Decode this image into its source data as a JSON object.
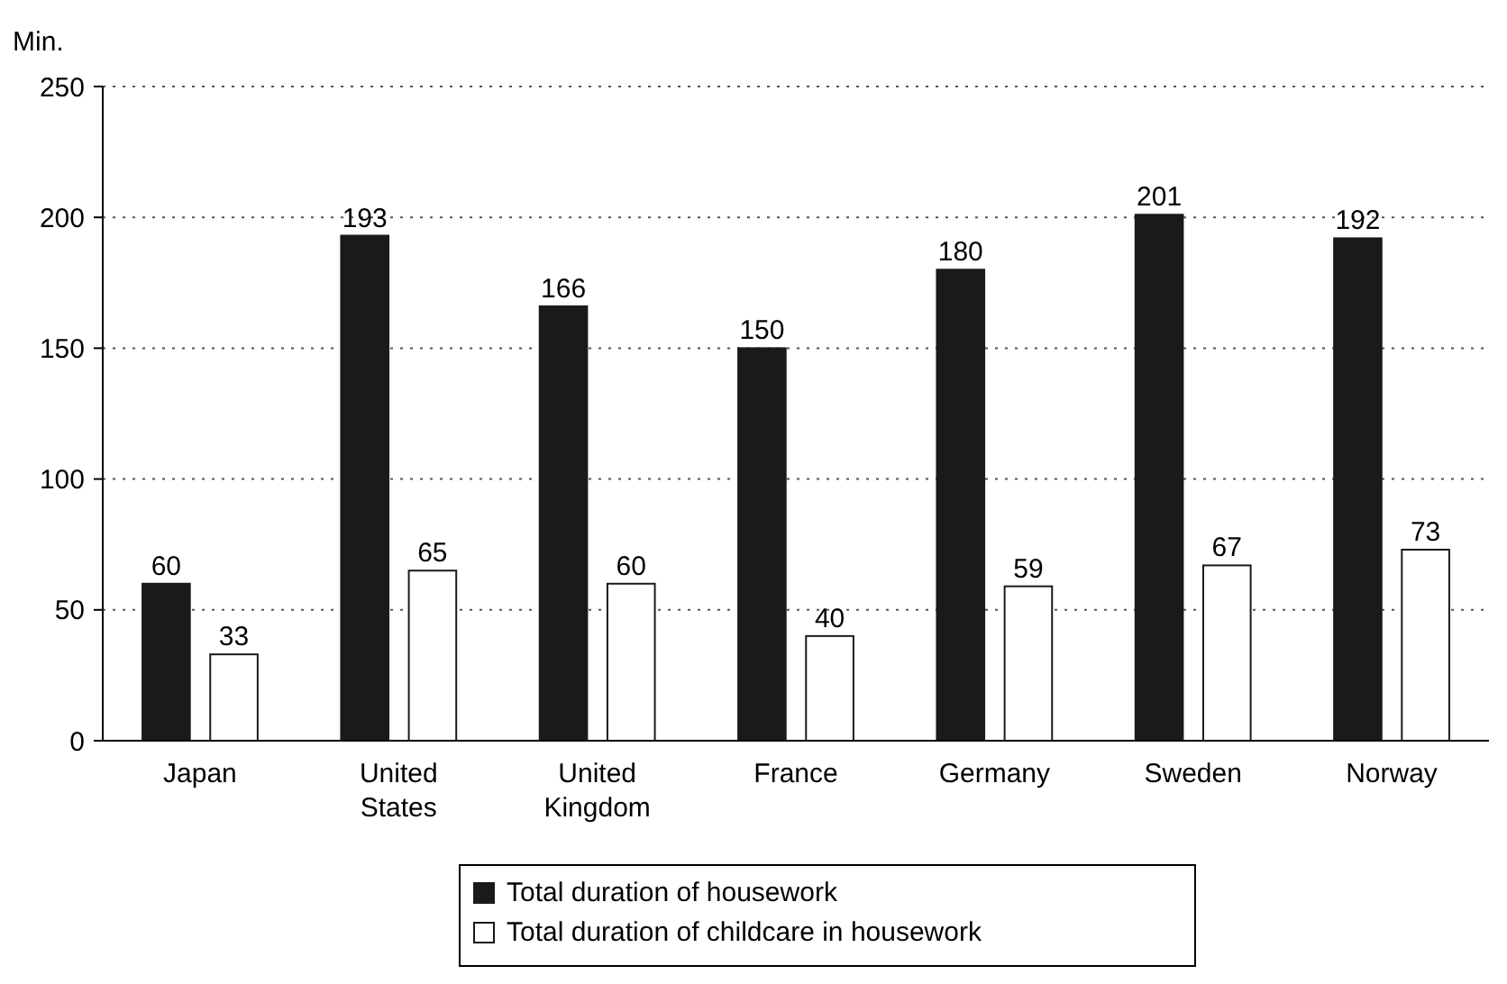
{
  "chart_data": {
    "type": "bar",
    "ylabel": "Min.",
    "categories": [
      "Japan",
      "United States",
      "United Kingdom",
      "France",
      "Germany",
      "Sweden",
      "Norway"
    ],
    "series": [
      {
        "name": "Total duration of housework",
        "color": "#1a1a1a",
        "values": [
          60,
          193,
          166,
          150,
          180,
          201,
          192
        ]
      },
      {
        "name": "Total duration of childcare in housework",
        "color": "#ffffff",
        "values": [
          33,
          65,
          60,
          40,
          59,
          67,
          73
        ]
      }
    ],
    "ylim": [
      0,
      250
    ],
    "yticks": [
      0,
      50,
      100,
      150,
      200,
      250
    ],
    "grid": "y",
    "data_labels": true,
    "legend": "bottom"
  }
}
